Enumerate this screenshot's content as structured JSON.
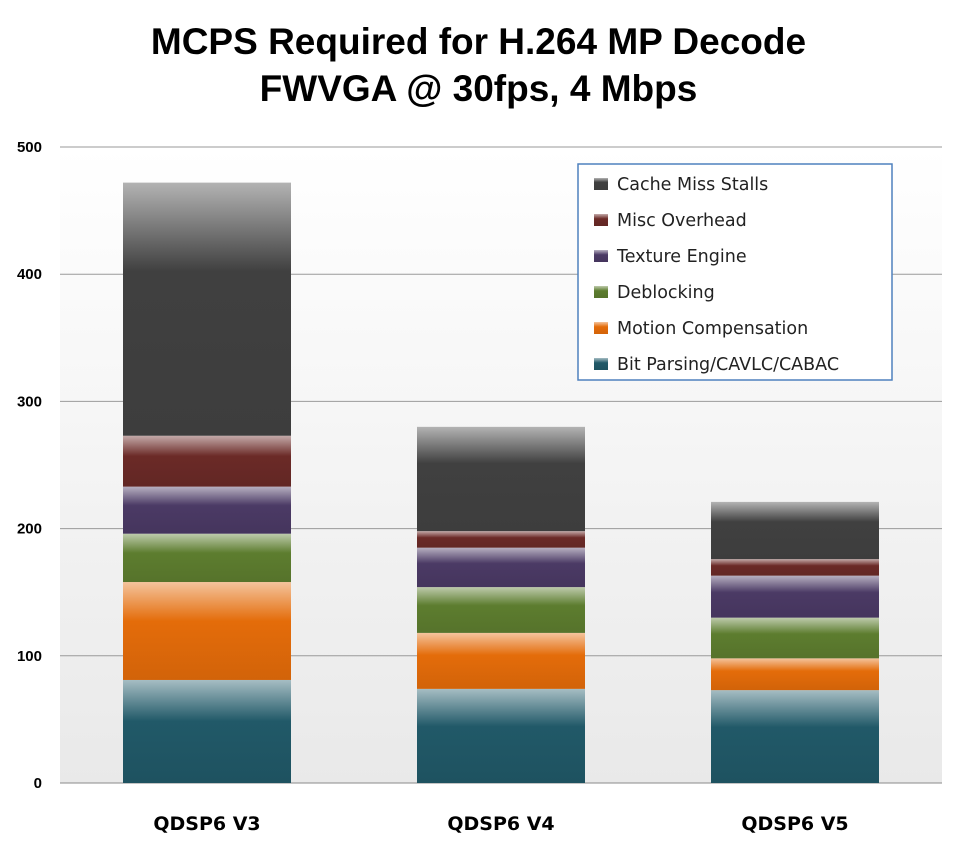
{
  "title_line1": "MCPS Required for H.264 MP Decode",
  "title_line2": "FWVGA @ 30fps, 4 Mbps",
  "chart_data": {
    "type": "bar",
    "stacked": true,
    "title": "MCPS Required for H.264 MP Decode FWVGA @ 30fps, 4 Mbps",
    "xlabel": "",
    "ylabel": "",
    "ylim": [
      0,
      500
    ],
    "yticks": [
      0,
      100,
      200,
      300,
      400,
      500
    ],
    "grid": true,
    "legend_position": "top-right",
    "categories": [
      "QDSP6 V3",
      "QDSP6 V4",
      "QDSP6 V5"
    ],
    "series": [
      {
        "name": "Bit Parsing/CAVLC/CABAC",
        "values": [
          81,
          74,
          73
        ],
        "color": "#215968"
      },
      {
        "name": "Motion Compensation",
        "values": [
          77,
          44,
          25
        ],
        "color": "#e46c0a"
      },
      {
        "name": "Deblocking",
        "values": [
          38,
          36,
          32
        ],
        "color": "#5d7d2f"
      },
      {
        "name": "Texture Engine",
        "values": [
          37,
          31,
          33
        ],
        "color": "#4b3a65"
      },
      {
        "name": "Misc Overhead",
        "values": [
          40,
          13,
          13
        ],
        "color": "#6b2a27"
      },
      {
        "name": "Cache Miss Stalls",
        "values": [
          199,
          82,
          45
        ],
        "color": "#404040"
      }
    ]
  }
}
